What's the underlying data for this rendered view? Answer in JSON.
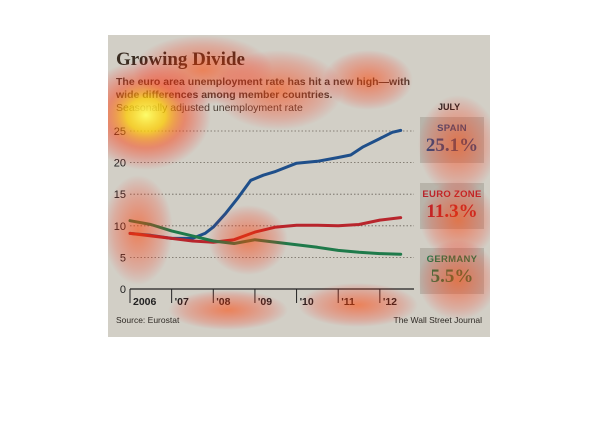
{
  "title": "Growing Divide",
  "subtitle_bold": "The euro area unemployment rate has hit a new high—with wide differences among member countries.",
  "subtitle_lite": "Seasonally adjusted unemployment rate",
  "source": "Source: Eurostat",
  "publisher": "The Wall Street Journal",
  "callouts": {
    "month": "JULY",
    "spain": {
      "name": "SPAIN",
      "value": "25.1%"
    },
    "eurozone": {
      "name": "EURO ZONE",
      "value": "11.3%"
    },
    "germany": {
      "name": "GERMANY",
      "value": "5.5%"
    }
  },
  "colors": {
    "spain": "#1f4f8a",
    "eurozone": "#b8252c",
    "germany": "#1f7a4a",
    "background": "#d2cfc6",
    "callout_box": "#b8b4aa"
  },
  "chart_data": {
    "type": "line",
    "title": "Growing Divide",
    "subtitle": "The euro area unemployment rate has hit a new high—with wide differences among member countries. Seasonally adjusted unemployment rate",
    "xlabel": "",
    "ylabel": "",
    "x_tick_labels": [
      "2006",
      "'07",
      "'08",
      "'09",
      "'10",
      "'11",
      "'12"
    ],
    "y_ticks": [
      0,
      5,
      10,
      15,
      20,
      25
    ],
    "ylim": [
      0,
      25
    ],
    "xlim": [
      2006.0,
      2012.58
    ],
    "grid": "horizontal dotted",
    "legend": "right-side callouts",
    "series": [
      {
        "name": "SPAIN",
        "x": [
          2006.0,
          2006.5,
          2007.0,
          2007.5,
          2007.8,
          2008.0,
          2008.3,
          2008.6,
          2008.9,
          2009.2,
          2009.5,
          2010.0,
          2010.5,
          2011.0,
          2011.3,
          2011.6,
          2012.0,
          2012.3,
          2012.5
        ],
        "values": [
          8.8,
          8.5,
          8.0,
          8.0,
          8.8,
          9.8,
          12.0,
          14.5,
          17.2,
          18.0,
          18.6,
          19.9,
          20.2,
          20.8,
          21.2,
          22.5,
          23.8,
          24.8,
          25.1
        ]
      },
      {
        "name": "EURO ZONE",
        "x": [
          2006.0,
          2006.5,
          2007.0,
          2007.5,
          2008.0,
          2008.5,
          2009.0,
          2009.5,
          2010.0,
          2010.5,
          2011.0,
          2011.5,
          2012.0,
          2012.5
        ],
        "values": [
          8.8,
          8.4,
          8.0,
          7.6,
          7.4,
          7.8,
          9.0,
          9.8,
          10.1,
          10.1,
          10.0,
          10.2,
          10.9,
          11.3
        ]
      },
      {
        "name": "GERMANY",
        "x": [
          2006.0,
          2006.5,
          2007.0,
          2007.5,
          2008.0,
          2008.5,
          2009.0,
          2009.5,
          2010.0,
          2010.5,
          2011.0,
          2011.5,
          2012.0,
          2012.5
        ],
        "values": [
          10.8,
          10.2,
          9.2,
          8.4,
          7.6,
          7.2,
          7.8,
          7.4,
          7.0,
          6.6,
          6.1,
          5.8,
          5.6,
          5.5
        ]
      }
    ]
  }
}
